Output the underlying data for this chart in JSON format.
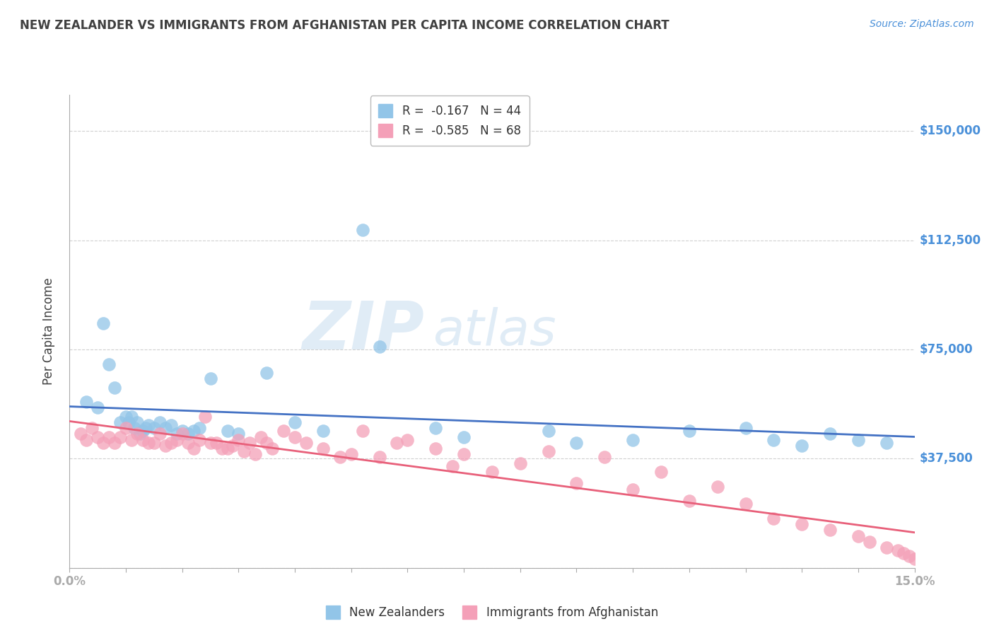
{
  "title": "NEW ZEALANDER VS IMMIGRANTS FROM AFGHANISTAN PER CAPITA INCOME CORRELATION CHART",
  "source": "Source: ZipAtlas.com",
  "ylabel": "Per Capita Income",
  "xlim": [
    0.0,
    15.0
  ],
  "ylim": [
    0,
    162500
  ],
  "yticks": [
    0,
    37500,
    75000,
    112500,
    150000
  ],
  "ytick_labels": [
    "",
    "$37,500",
    "$75,000",
    "$112,500",
    "$150,000"
  ],
  "watermark_zip": "ZIP",
  "watermark_atlas": "atlas",
  "blue_color": "#92c5e8",
  "pink_color": "#f4a0b8",
  "blue_line_color": "#4472c4",
  "pink_line_color": "#e8607a",
  "background_color": "#ffffff",
  "grid_color": "#d0d0d0",
  "title_color": "#404040",
  "axis_label_color": "#404040",
  "tick_color": "#4a90d9",
  "blue_R": -0.167,
  "blue_N": 44,
  "pink_R": -0.585,
  "pink_N": 68,
  "blue_scatter_x": [
    0.3,
    0.5,
    0.6,
    0.7,
    0.8,
    0.9,
    1.0,
    1.05,
    1.1,
    1.15,
    1.2,
    1.3,
    1.35,
    1.4,
    1.5,
    1.6,
    1.7,
    1.8,
    1.9,
    2.0,
    2.1,
    2.2,
    2.3,
    2.5,
    2.8,
    3.0,
    3.5,
    4.0,
    4.5,
    5.2,
    5.5,
    6.5,
    7.0,
    8.5,
    9.0,
    10.0,
    11.0,
    12.0,
    12.5,
    13.0,
    13.5,
    14.0,
    14.5,
    1.25
  ],
  "blue_scatter_y": [
    57000,
    55000,
    84000,
    70000,
    62000,
    50000,
    52000,
    50000,
    52000,
    48000,
    50000,
    47000,
    48000,
    49000,
    48000,
    50000,
    48000,
    49000,
    46000,
    47000,
    46000,
    47000,
    48000,
    65000,
    47000,
    46000,
    67000,
    50000,
    47000,
    116000,
    76000,
    48000,
    45000,
    47000,
    43000,
    44000,
    47000,
    48000,
    44000,
    42000,
    46000,
    44000,
    43000,
    46000
  ],
  "pink_scatter_x": [
    0.2,
    0.3,
    0.4,
    0.5,
    0.6,
    0.7,
    0.8,
    0.9,
    1.0,
    1.1,
    1.2,
    1.3,
    1.4,
    1.5,
    1.6,
    1.7,
    1.8,
    1.9,
    2.0,
    2.1,
    2.2,
    2.3,
    2.4,
    2.5,
    2.6,
    2.7,
    2.8,
    2.9,
    3.0,
    3.1,
    3.2,
    3.3,
    3.4,
    3.5,
    3.6,
    3.8,
    4.0,
    4.2,
    4.5,
    4.8,
    5.0,
    5.2,
    5.5,
    5.8,
    6.0,
    6.5,
    7.0,
    7.5,
    8.0,
    8.5,
    9.0,
    9.5,
    10.0,
    10.5,
    11.0,
    11.5,
    12.0,
    12.5,
    13.0,
    13.5,
    14.0,
    14.2,
    14.5,
    14.7,
    14.8,
    14.9,
    15.0,
    6.8
  ],
  "pink_scatter_y": [
    46000,
    44000,
    48000,
    45000,
    43000,
    45000,
    43000,
    45000,
    48000,
    44000,
    46000,
    44000,
    43000,
    43000,
    46000,
    42000,
    43000,
    44000,
    46000,
    43000,
    41000,
    44000,
    52000,
    43000,
    43000,
    41000,
    41000,
    42000,
    44000,
    40000,
    43000,
    39000,
    45000,
    43000,
    41000,
    47000,
    45000,
    43000,
    41000,
    38000,
    39000,
    47000,
    38000,
    43000,
    44000,
    41000,
    39000,
    33000,
    36000,
    40000,
    29000,
    38000,
    27000,
    33000,
    23000,
    28000,
    22000,
    17000,
    15000,
    13000,
    11000,
    9000,
    7000,
    6000,
    5000,
    4000,
    3000,
    35000
  ]
}
